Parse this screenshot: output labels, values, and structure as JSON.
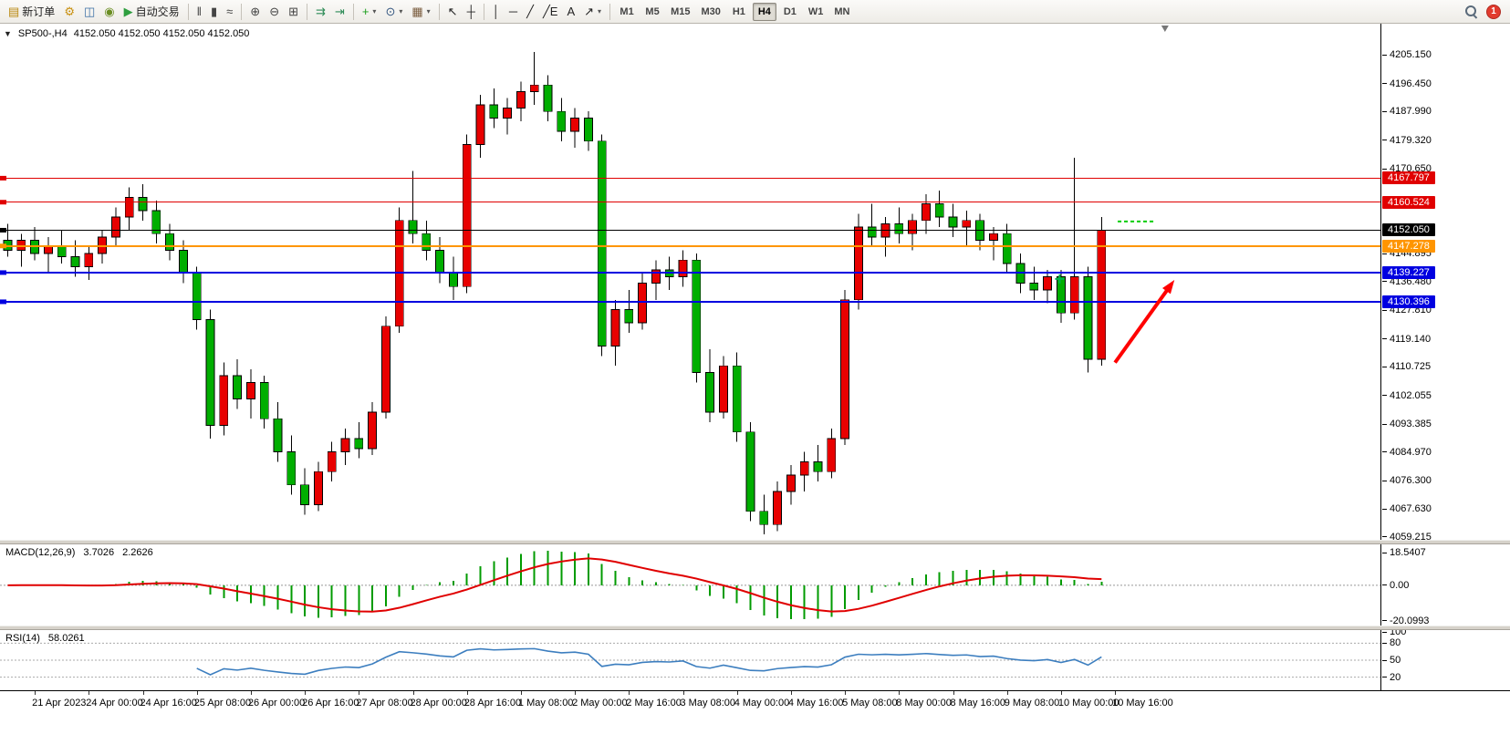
{
  "toolbar": {
    "buttons": [
      {
        "name": "new-order",
        "glyph": "▤",
        "glyph_color": "#b8860b",
        "label": "新订单"
      },
      {
        "name": "metaeditor",
        "glyph": "⚙",
        "glyph_color": "#c89010"
      },
      {
        "name": "market-watch",
        "glyph": "◫",
        "glyph_color": "#3a6ea5"
      },
      {
        "name": "navigator",
        "glyph": "◉",
        "glyph_color": "#6b8e23"
      },
      {
        "name": "auto-trading",
        "glyph": "▶",
        "glyph_color": "#2e9e3f",
        "label": "自动交易"
      },
      {
        "sep": true
      },
      {
        "name": "bar-chart",
        "glyph": "‖",
        "glyph_color": "#444444"
      },
      {
        "name": "candlestick-chart",
        "glyph": "▮",
        "glyph_color": "#444444"
      },
      {
        "name": "line-chart",
        "glyph": "≈",
        "glyph_color": "#444444"
      },
      {
        "sep": true
      },
      {
        "name": "zoom-in",
        "glyph": "⊕",
        "glyph_color": "#444444"
      },
      {
        "name": "zoom-out",
        "glyph": "⊖",
        "glyph_color": "#444444"
      },
      {
        "name": "tile-windows",
        "glyph": "⊞",
        "glyph_color": "#444444"
      },
      {
        "sep": true
      },
      {
        "name": "auto-scroll",
        "glyph": "⇉",
        "glyph_color": "#2e8b57"
      },
      {
        "name": "chart-shift",
        "glyph": "⇥",
        "glyph_color": "#2e8b57"
      },
      {
        "sep": true
      },
      {
        "name": "indicators-list",
        "glyph": "+",
        "glyph_color": "#1b9e1b",
        "dropdown": true
      },
      {
        "name": "periods",
        "glyph": "⊙",
        "glyph_color": "#33557f",
        "dropdown": true
      },
      {
        "name": "templates",
        "glyph": "▦",
        "glyph_color": "#7a5c3e",
        "dropdown": true
      },
      {
        "sep": true
      },
      {
        "name": "cursor",
        "glyph": "↖",
        "glyph_color": "#222222"
      },
      {
        "name": "crosshair",
        "glyph": "┼",
        "glyph_color": "#222222"
      },
      {
        "sep": true
      },
      {
        "name": "vertical-line",
        "glyph": "│",
        "glyph_color": "#222222"
      },
      {
        "name": "horizontal-line",
        "glyph": "─",
        "glyph_color": "#222222"
      },
      {
        "name": "trendline",
        "glyph": "╱",
        "glyph_color": "#222222"
      },
      {
        "name": "equidistant-channel",
        "glyph": "╱E",
        "glyph_color": "#222222"
      },
      {
        "name": "text-label",
        "glyph": "A",
        "glyph_color": "#222222"
      },
      {
        "name": "arrows-tool",
        "glyph": "↗",
        "glyph_color": "#222222",
        "dropdown": true
      },
      {
        "sep": true
      }
    ],
    "timeframes": [
      "M1",
      "M5",
      "M15",
      "M30",
      "H1",
      "H4",
      "D1",
      "W1",
      "MN"
    ],
    "active_timeframe": "H4",
    "notification_badge": "1"
  },
  "chart_data": {
    "type": "candlestick",
    "title": "SP500-,H4",
    "ohlc_display": "4152.050 4152.050 4152.050 4152.050",
    "collapse_glyph": "▼",
    "bull_color": "#e80000",
    "bear_color": "#00ae00",
    "bars_ohlc": [
      [
        4149,
        4154,
        4144,
        4146
      ],
      [
        4146,
        4151,
        4141,
        4149
      ],
      [
        4149,
        4153,
        4143,
        4145
      ],
      [
        4145,
        4150,
        4139,
        4147
      ],
      [
        4147,
        4152,
        4142,
        4144
      ],
      [
        4144,
        4149,
        4138,
        4141
      ],
      [
        4141,
        4147,
        4137,
        4145
      ],
      [
        4145,
        4152,
        4142,
        4150
      ],
      [
        4150,
        4159,
        4147,
        4156
      ],
      [
        4156,
        4165,
        4152,
        4162
      ],
      [
        4162,
        4166,
        4155,
        4158
      ],
      [
        4158,
        4161,
        4148,
        4151
      ],
      [
        4151,
        4154,
        4143,
        4146
      ],
      [
        4146,
        4149,
        4136,
        4139
      ],
      [
        4139,
        4141,
        4122,
        4125
      ],
      [
        4125,
        4128,
        4089,
        4093
      ],
      [
        4093,
        4112,
        4090,
        4108
      ],
      [
        4108,
        4113,
        4098,
        4101
      ],
      [
        4101,
        4110,
        4095,
        4106
      ],
      [
        4106,
        4108,
        4092,
        4095
      ],
      [
        4095,
        4100,
        4082,
        4085
      ],
      [
        4085,
        4090,
        4072,
        4075
      ],
      [
        4075,
        4080,
        4066,
        4069
      ],
      [
        4069,
        4082,
        4067,
        4079
      ],
      [
        4079,
        4088,
        4076,
        4085
      ],
      [
        4085,
        4092,
        4081,
        4089
      ],
      [
        4089,
        4094,
        4083,
        4086
      ],
      [
        4086,
        4100,
        4084,
        4097
      ],
      [
        4097,
        4126,
        4095,
        4123
      ],
      [
        4123,
        4159,
        4121,
        4155
      ],
      [
        4155,
        4170,
        4148,
        4151
      ],
      [
        4151,
        4155,
        4143,
        4146
      ],
      [
        4146,
        4150,
        4136,
        4139
      ],
      [
        4139,
        4144,
        4131,
        4135
      ],
      [
        4135,
        4181,
        4133,
        4178
      ],
      [
        4178,
        4193,
        4174,
        4190
      ],
      [
        4190,
        4195,
        4183,
        4186
      ],
      [
        4186,
        4192,
        4181,
        4189
      ],
      [
        4189,
        4197,
        4185,
        4194
      ],
      [
        4194,
        4206,
        4190,
        4196
      ],
      [
        4196,
        4199,
        4185,
        4188
      ],
      [
        4188,
        4192,
        4179,
        4182
      ],
      [
        4182,
        4189,
        4177,
        4186
      ],
      [
        4186,
        4188,
        4176,
        4179
      ],
      [
        4179,
        4181,
        4114,
        4117
      ],
      [
        4117,
        4131,
        4111,
        4128
      ],
      [
        4128,
        4134,
        4121,
        4124
      ],
      [
        4124,
        4139,
        4122,
        4136
      ],
      [
        4136,
        4143,
        4131,
        4140
      ],
      [
        4140,
        4144,
        4134,
        4138
      ],
      [
        4138,
        4146,
        4135,
        4143
      ],
      [
        4143,
        4145,
        4106,
        4109
      ],
      [
        4109,
        4116,
        4094,
        4097
      ],
      [
        4097,
        4114,
        4095,
        4111
      ],
      [
        4111,
        4115,
        4088,
        4091
      ],
      [
        4091,
        4094,
        4064,
        4067
      ],
      [
        4067,
        4072,
        4060,
        4063
      ],
      [
        4063,
        4076,
        4061,
        4073
      ],
      [
        4073,
        4081,
        4069,
        4078
      ],
      [
        4078,
        4085,
        4073,
        4082
      ],
      [
        4082,
        4087,
        4076,
        4079
      ],
      [
        4079,
        4092,
        4077,
        4089
      ],
      [
        4089,
        4134,
        4087,
        4131
      ],
      [
        4131,
        4157,
        4128,
        4153
      ],
      [
        4153,
        4160,
        4147,
        4150
      ],
      [
        4150,
        4156,
        4144,
        4154
      ],
      [
        4154,
        4159,
        4148,
        4151
      ],
      [
        4151,
        4157,
        4146,
        4155
      ],
      [
        4155,
        4163,
        4151,
        4160
      ],
      [
        4160,
        4164,
        4153,
        4156
      ],
      [
        4156,
        4160,
        4150,
        4153
      ],
      [
        4153,
        4158,
        4147,
        4155
      ],
      [
        4155,
        4157,
        4146,
        4149
      ],
      [
        4149,
        4153,
        4143,
        4151
      ],
      [
        4151,
        4154,
        4139,
        4142
      ],
      [
        4142,
        4145,
        4133,
        4136
      ],
      [
        4136,
        4141,
        4131,
        4134
      ],
      [
        4134,
        4140,
        4130,
        4138
      ],
      [
        4138,
        4140,
        4124,
        4127
      ],
      [
        4127,
        4174,
        4125,
        4138
      ],
      [
        4138,
        4141,
        4109,
        4113
      ],
      [
        4113,
        4156,
        4111,
        4152.05
      ]
    ],
    "x_labels": [
      "21 Apr 2023",
      "24 Apr 00:00",
      "24 Apr 16:00",
      "25 Apr 08:00",
      "26 Apr 00:00",
      "26 Apr 16:00",
      "27 Apr 08:00",
      "28 Apr 00:00",
      "28 Apr 16:00",
      "1 May 08:00",
      "2 May 00:00",
      "2 May 16:00",
      "3 May 08:00",
      "4 May 00:00",
      "4 May 16:00",
      "5 May 08:00",
      "8 May 00:00",
      "8 May 16:00",
      "9 May 08:00",
      "10 May 00:00",
      "10 May 16:00"
    ],
    "x_label_first_bar": 2,
    "x_label_step": 4,
    "y_ticks": [
      "4205.150",
      "4196.450",
      "4187.990",
      "4179.320",
      "4170.650",
      "4144.895",
      "4136.480",
      "4127.810",
      "4119.140",
      "4110.725",
      "4102.055",
      "4093.385",
      "4084.970",
      "4076.300",
      "4067.630",
      "4059.215"
    ],
    "hlines": [
      {
        "price": 4167.797,
        "label": "4167.797",
        "color": "#e00000",
        "width": 1
      },
      {
        "price": 4160.524,
        "label": "4160.524",
        "color": "#e00000",
        "width": 1
      },
      {
        "price": 4152.05,
        "label": "4152.050",
        "color": "#000000",
        "width": 1,
        "current": true
      },
      {
        "price": 4147.278,
        "label": "4147.278",
        "color": "#ff9500",
        "width": 2
      },
      {
        "price": 4139.227,
        "label": "4139.227",
        "color": "#0000e0",
        "width": 2
      },
      {
        "price": 4130.396,
        "label": "4130.396",
        "color": "#0000e0",
        "width": 2
      }
    ],
    "annotations": [
      {
        "type": "arrow",
        "name": "up-arrow-annotation",
        "color": "#ff0000",
        "from_bar": 82,
        "from_price": 4112,
        "to_bar": 86.4,
        "to_price": 4137
      },
      {
        "type": "dashed-segment",
        "name": "dashed-price-segment",
        "color": "#00cc00",
        "price": 4154.7,
        "from_bar": 82.2,
        "to_bar": 85
      },
      {
        "type": "cross-marker",
        "name": "cross-marker",
        "color": "#00b050",
        "bar": 77.9,
        "price": 4137.3
      },
      {
        "type": "shift-marker",
        "name": "chart-shift-marker",
        "color": "#777777",
        "bar": 85.7
      }
    ],
    "indicators": [
      {
        "type": "MACD",
        "label": "MACD(12,26,9)",
        "values": [
          "3.7026",
          "2.2626"
        ],
        "scale_labels": [
          "18.5407",
          "0.00",
          "-20.0993"
        ],
        "histogram_color": "#009b00",
        "signal_color": "#e00000"
      },
      {
        "type": "RSI",
        "label": "RSI(14)",
        "value": "58.0261",
        "scale_labels": [
          "100",
          "80",
          "50",
          "20"
        ],
        "level_values": [
          80,
          50,
          20
        ],
        "line_color": "#3c7ebf"
      }
    ]
  }
}
